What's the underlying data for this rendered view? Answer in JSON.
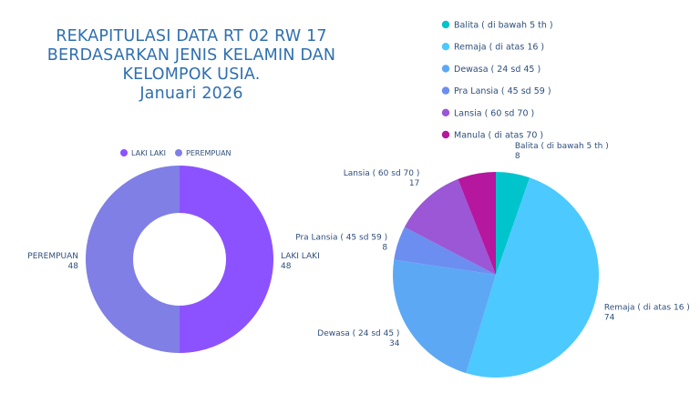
{
  "title": {
    "line1": "REKAPITULASI DATA RT 02 RW 17",
    "line2": "BERDASARKAN JENIS KELAMIN DAN",
    "line3": "KELOMPOK USIA.",
    "line4": "Januari 2026"
  },
  "chart_data": [
    {
      "type": "donut",
      "legend_position": "top",
      "categories": [
        "LAKI LAKI",
        "PEREMPUAN"
      ],
      "values": [
        48,
        48
      ],
      "colors": [
        "#8c52ff",
        "#7f7fe6"
      ]
    },
    {
      "type": "pie",
      "legend_position": "top-right",
      "categories": [
        "Balita ( di bawah 5 th )",
        "Remaja ( di atas 16 )",
        "Dewasa ( 24 sd 45 )",
        "Pra Lansia ( 45 sd 59 )",
        "Lansia ( 60 sd 70 )",
        "Manula ( di atas 70 )"
      ],
      "slice_labels": [
        "Balita ( di bawah 5 th )",
        "Remaja ( di atas 16 )",
        "Dewasa ( 24 sd 45 )",
        "Pra Lansia ( 45 sd 59 )",
        "Lansia ( 60 sd 70 )",
        ""
      ],
      "values": [
        8,
        74,
        34,
        8,
        17,
        9
      ],
      "colors": [
        "#00c4cc",
        "#4cc9ff",
        "#5ca8f5",
        "#6c8ef0",
        "#9b57d6",
        "#b5179e"
      ]
    }
  ]
}
